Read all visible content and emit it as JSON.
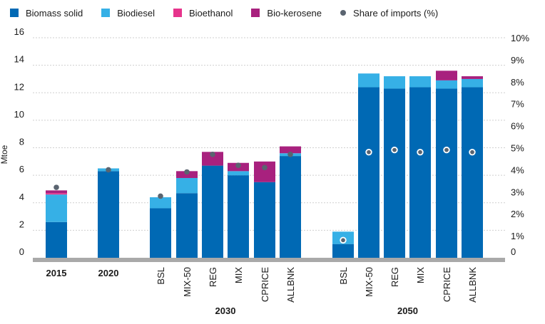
{
  "chart_data": {
    "type": "bar",
    "stacked": true,
    "ylabel": "Mtoe",
    "ylim": [
      0,
      16
    ],
    "yticks": [
      "0",
      "2",
      "4",
      "6",
      "8",
      "10",
      "12",
      "14",
      "16"
    ],
    "y2lim": [
      0,
      10
    ],
    "y2ticks": [
      "0",
      "1%",
      "2%",
      "3%",
      "4%",
      "5%",
      "6%",
      "7%",
      "8%",
      "9%",
      "10%"
    ],
    "grid": true,
    "legend_position": "top-left",
    "colors": {
      "Biomass solid": "#0069b4",
      "Biodiesel": "#36b0e6",
      "Bioethanol": "#e6348c",
      "Bio-kerosene": "#a8217e",
      "Share of imports (%)": "#5a6470"
    },
    "legend": [
      "Biomass solid",
      "Biodiesel",
      "Bioethanol",
      "Bio-kerosene",
      "Share of imports (%)"
    ],
    "categories": [
      "2015",
      "2020",
      "BSL",
      "MIX-50",
      "REG",
      "MIX",
      "CPRICE",
      "ALLBNK",
      "BSL",
      "MIX-50",
      "REG",
      "MIX",
      "CPRICE",
      "ALLBNK"
    ],
    "category_groups": [
      {
        "label": "",
        "members": [
          0
        ]
      },
      {
        "label": "",
        "members": [
          1
        ]
      },
      {
        "label": "2030",
        "members": [
          2,
          3,
          4,
          5,
          6,
          7
        ]
      },
      {
        "label": "2050",
        "members": [
          8,
          9,
          10,
          11,
          12,
          13
        ]
      }
    ],
    "series": [
      {
        "name": "Biomass solid",
        "values": [
          2.6,
          6.3,
          3.6,
          4.7,
          6.7,
          6.0,
          5.5,
          7.4,
          1.0,
          12.4,
          12.3,
          12.4,
          12.3,
          12.4
        ]
      },
      {
        "name": "Biodiesel",
        "values": [
          2.0,
          0.2,
          0.8,
          1.1,
          0.0,
          0.3,
          0.0,
          0.2,
          0.9,
          1.0,
          0.9,
          0.8,
          0.6,
          0.6
        ]
      },
      {
        "name": "Bioethanol",
        "values": [
          0.1,
          0.0,
          0.0,
          0.0,
          0.0,
          0.0,
          0.0,
          0.0,
          0.0,
          0.0,
          0.0,
          0.0,
          0.0,
          0.0
        ]
      },
      {
        "name": "Bio-kerosene",
        "values": [
          0.2,
          0.0,
          0.0,
          0.5,
          1.0,
          0.6,
          1.5,
          0.5,
          0.0,
          0.0,
          0.0,
          0.0,
          0.7,
          0.2
        ]
      }
    ],
    "imports_share": {
      "name": "Share of imports (%)",
      "values": [
        3.2,
        4.0,
        2.8,
        3.9,
        4.7,
        4.2,
        4.1,
        4.7,
        0.8,
        4.8,
        4.9,
        4.8,
        4.9,
        4.8
      ]
    }
  }
}
